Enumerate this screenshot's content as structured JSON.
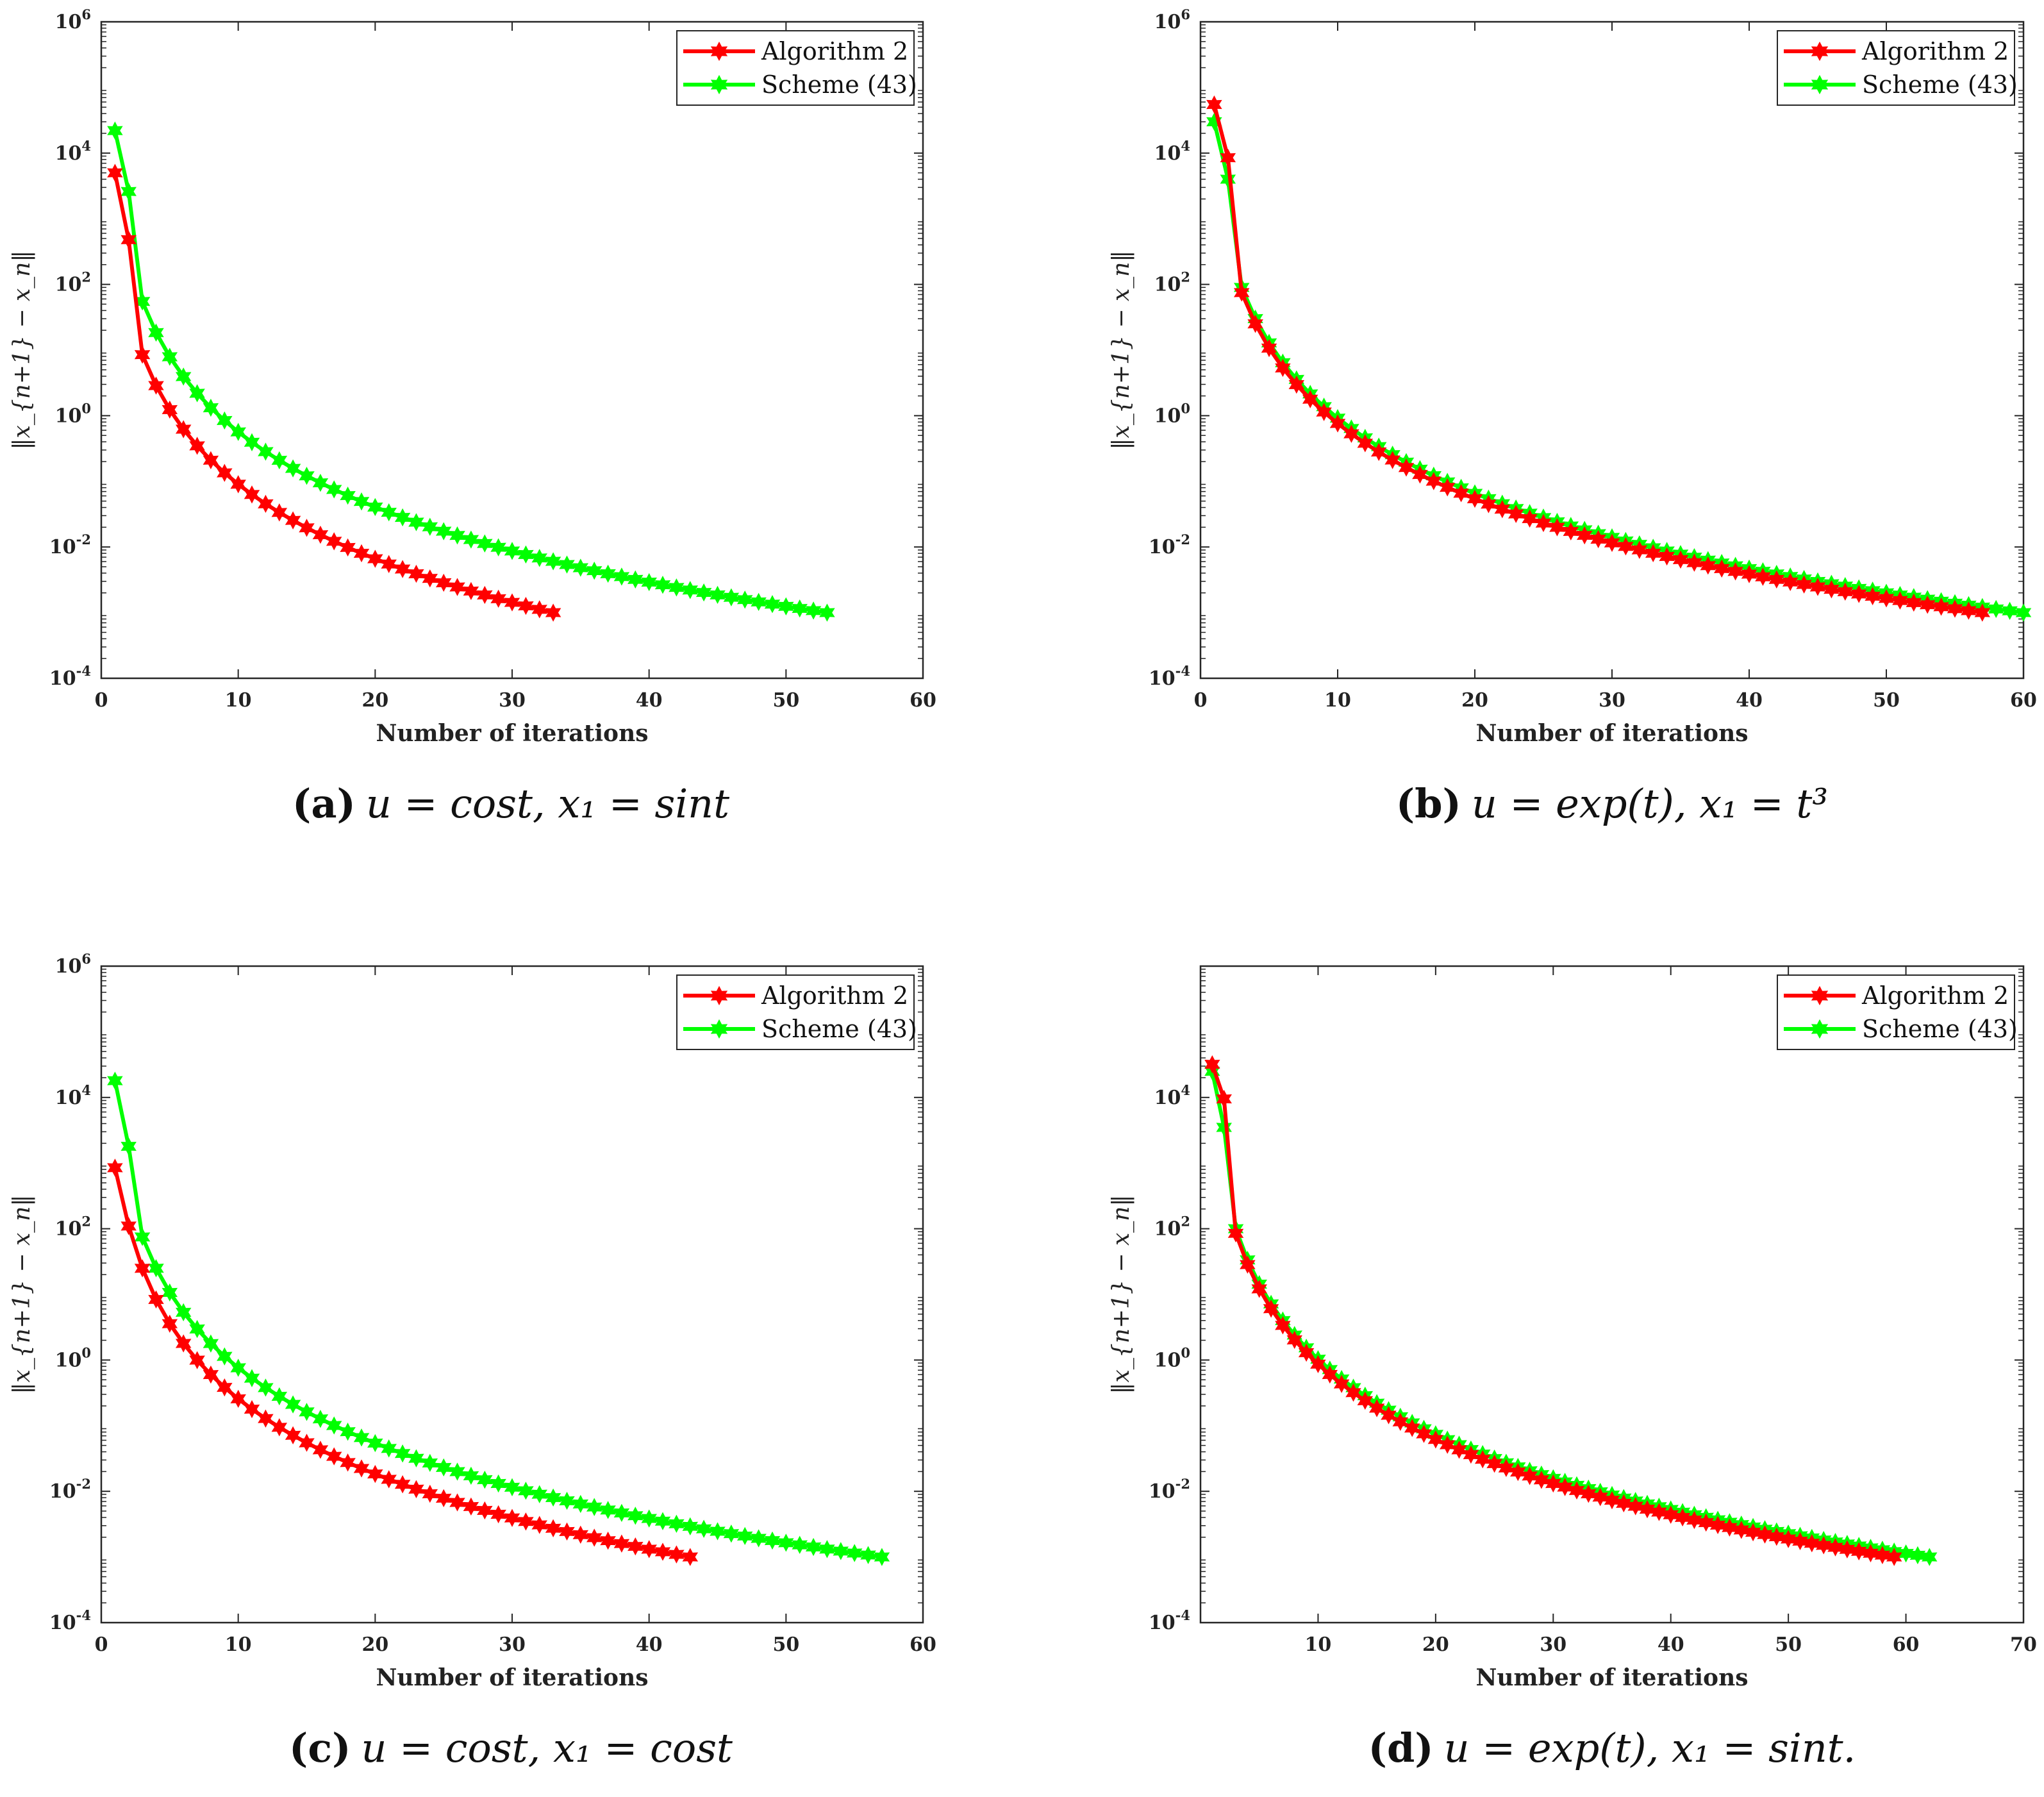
{
  "chart_data": [
    {
      "type": "line",
      "panel": "a",
      "caption_tag": "(a)",
      "caption_expr": "u = cost,  x₁ = sint",
      "xlabel": "Number of iterations",
      "ylabel": "‖x_{n+1} − x_n‖",
      "yscale": "log",
      "xlim": [
        0,
        60
      ],
      "ylim_exp": [
        -4,
        6
      ],
      "x_ticks": [
        "0",
        "10",
        "20",
        "30",
        "40",
        "50",
        "60"
      ],
      "y_ticks": [
        {
          "base": "10",
          "exp": "-4"
        },
        {
          "base": "10",
          "exp": "-2"
        },
        {
          "base": "10",
          "exp": "0"
        },
        {
          "base": "10",
          "exp": "2"
        },
        {
          "base": "10",
          "exp": "4"
        },
        {
          "base": "10",
          "exp": "6"
        }
      ],
      "legend": [
        "Algorithm 2",
        "Scheme (43)"
      ],
      "series": [
        {
          "name": "Algorithm 2",
          "color": "#ff0000",
          "n": 33,
          "y1": 5000,
          "y2": 480,
          "y3": 8.5,
          "yEnd": 0.001
        },
        {
          "name": "Scheme (43)",
          "color": "#00ff00",
          "n": 53,
          "y1": 22000,
          "y2": 2600,
          "y3": 55,
          "yEnd": 0.001
        }
      ]
    },
    {
      "type": "line",
      "panel": "b",
      "caption_tag": "(b)",
      "caption_expr": "u = exp(t),  x₁ = t³",
      "xlabel": "Number of iterations",
      "ylabel": "‖x_{n+1} − x_n‖",
      "yscale": "log",
      "xlim": [
        0,
        60
      ],
      "ylim_exp": [
        -4,
        6
      ],
      "x_ticks": [
        "0",
        "10",
        "20",
        "30",
        "40",
        "50",
        "60"
      ],
      "y_ticks": [
        {
          "base": "10",
          "exp": "-4"
        },
        {
          "base": "10",
          "exp": "-2"
        },
        {
          "base": "10",
          "exp": "0"
        },
        {
          "base": "10",
          "exp": "2"
        },
        {
          "base": "10",
          "exp": "4"
        },
        {
          "base": "10",
          "exp": "6"
        }
      ],
      "legend": [
        "Algorithm 2",
        "Scheme (43)"
      ],
      "series": [
        {
          "name": "Algorithm 2",
          "color": "#ff0000",
          "n": 57,
          "y1": 55000,
          "y2": 8500,
          "y3": 75,
          "yEnd": 0.001
        },
        {
          "name": "Scheme (43)",
          "color": "#00ff00",
          "n": 60,
          "y1": 30000,
          "y2": 4000,
          "y3": 90,
          "yEnd": 0.001
        }
      ]
    },
    {
      "type": "line",
      "panel": "c",
      "caption_tag": "(c)",
      "caption_expr": "u = cost,  x₁ = cost",
      "xlabel": "Number of iterations",
      "ylabel": "‖x_{n+1} − x_n‖",
      "yscale": "log",
      "xlim": [
        0,
        60
      ],
      "ylim_exp": [
        -4,
        6
      ],
      "x_ticks": [
        "0",
        "10",
        "20",
        "30",
        "40",
        "50",
        "60"
      ],
      "y_ticks": [
        {
          "base": "10",
          "exp": "-4"
        },
        {
          "base": "10",
          "exp": "-2"
        },
        {
          "base": "10",
          "exp": "0"
        },
        {
          "base": "10",
          "exp": "2"
        },
        {
          "base": "10",
          "exp": "4"
        },
        {
          "base": "10",
          "exp": "6"
        }
      ],
      "legend": [
        "Algorithm 2",
        "Scheme (43)"
      ],
      "series": [
        {
          "name": "Algorithm 2",
          "color": "#ff0000",
          "n": 43,
          "y1": 850,
          "y2": 110,
          "y3": 25,
          "yEnd": 0.001
        },
        {
          "name": "Scheme (43)",
          "color": "#00ff00",
          "n": 57,
          "y1": 18000,
          "y2": 1800,
          "y3": 75,
          "yEnd": 0.001
        }
      ]
    },
    {
      "type": "line",
      "panel": "d",
      "caption_tag": "(d)",
      "caption_expr": "u = exp(t),  x₁ = sint.",
      "xlabel": "Number of iterations",
      "ylabel": "‖x_{n+1} − x_n‖",
      "yscale": "log",
      "xlim": [
        0,
        70
      ],
      "ylim_exp": [
        -4,
        6
      ],
      "x_ticks": [
        "10",
        "20",
        "30",
        "40",
        "50",
        "60",
        "70"
      ],
      "y_ticks": [
        {
          "base": "10",
          "exp": "-4"
        },
        {
          "base": "10",
          "exp": "-2"
        },
        {
          "base": "10",
          "exp": "0"
        },
        {
          "base": "10",
          "exp": "2"
        },
        {
          "base": "10",
          "exp": "4"
        }
      ],
      "legend": [
        "Algorithm 2",
        "Scheme (43)"
      ],
      "series": [
        {
          "name": "Algorithm 2",
          "color": "#ff0000",
          "n": 59,
          "y1": 32000,
          "y2": 9500,
          "y3": 85,
          "yEnd": 0.001
        },
        {
          "name": "Scheme (43)",
          "color": "#00ff00",
          "n": 62,
          "y1": 25000,
          "y2": 3500,
          "y3": 100,
          "yEnd": 0.001
        }
      ]
    }
  ]
}
